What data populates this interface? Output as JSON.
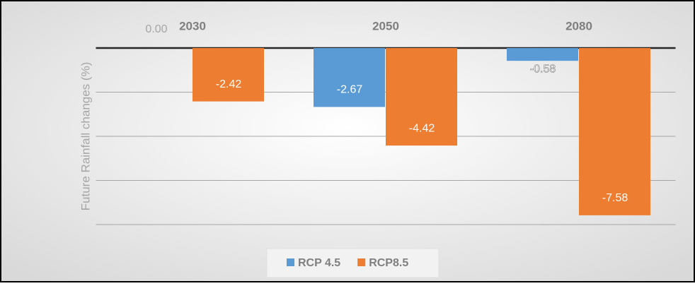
{
  "chart_data": {
    "type": "bar",
    "y_label": "Future Rainfall changes (%)",
    "categories": [
      "2030",
      "2050",
      "2080"
    ],
    "series": [
      {
        "name": "RCP 4.5",
        "color": "#5b9bd5",
        "values": [
          0,
          -2.67,
          -0.58
        ],
        "value_labels": [
          "0.00",
          "-2.67",
          "-0.58"
        ]
      },
      {
        "name": "RCP8.5",
        "color": "#ed7d31",
        "values": [
          -2.42,
          -4.42,
          -7.58
        ]
      }
    ],
    "ylim": [
      -8,
      0
    ],
    "yticks": [
      0,
      -2,
      -4,
      -6,
      -8
    ],
    "grid": true
  }
}
